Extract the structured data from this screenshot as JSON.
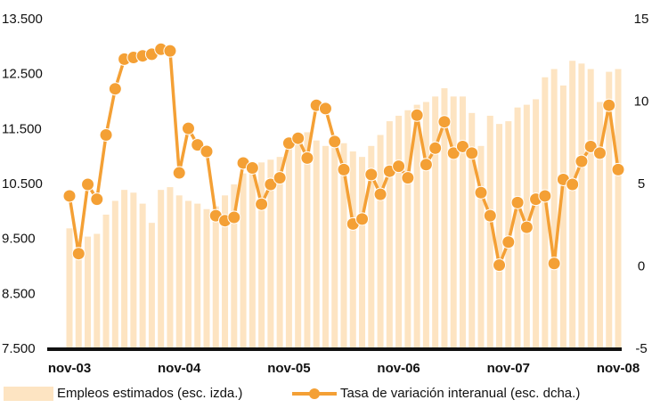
{
  "chart_data": {
    "type": "bar_line",
    "categories": [
      "nov-03",
      null,
      null,
      null,
      null,
      null,
      null,
      null,
      null,
      null,
      null,
      null,
      "nov-04",
      null,
      null,
      null,
      null,
      null,
      null,
      null,
      null,
      null,
      null,
      null,
      "nov-05",
      null,
      null,
      null,
      null,
      null,
      null,
      null,
      null,
      null,
      null,
      null,
      "nov-06",
      null,
      null,
      null,
      null,
      null,
      null,
      null,
      null,
      null,
      null,
      null,
      "nov-07",
      null,
      null,
      null,
      null,
      null,
      null,
      null,
      null,
      null,
      null,
      null,
      "nov-08"
    ],
    "series": [
      {
        "name": "Empleos estimados (esc. izda.)",
        "type": "bar",
        "color": "#fde4c2",
        "values": [
          9700,
          9400,
          9550,
          9600,
          9950,
          10200,
          10400,
          10350,
          10150,
          9800,
          10400,
          10450,
          10300,
          10200,
          10150,
          10050,
          10100,
          10300,
          10500,
          10700,
          10850,
          10900,
          10950,
          11000,
          11200,
          11300,
          11450,
          11300,
          11200,
          11300,
          11250,
          11100,
          11000,
          11200,
          11400,
          11650,
          11750,
          11850,
          11950,
          12000,
          12100,
          12250,
          12100,
          12100,
          11800,
          11200,
          11750,
          11600,
          11650,
          11900,
          11950,
          12050,
          12450,
          12600,
          12300,
          12750,
          12700,
          12600,
          12000,
          12550,
          12600
        ]
      },
      {
        "name": "Tasa de variación interanual (esc. dcha.)",
        "type": "line",
        "axis": "y2",
        "color": "#f4a035",
        "values": [
          4.3,
          0.8,
          5.0,
          4.1,
          8.0,
          10.8,
          12.6,
          12.7,
          12.8,
          12.9,
          13.2,
          13.1,
          5.7,
          8.4,
          7.4,
          7.0,
          3.1,
          2.8,
          3.0,
          6.3,
          6.0,
          3.8,
          5.0,
          5.4,
          7.5,
          7.8,
          6.6,
          9.8,
          9.6,
          7.6,
          5.9,
          2.6,
          2.9,
          5.6,
          4.4,
          5.8,
          6.1,
          5.4,
          9.2,
          6.2,
          7.2,
          8.8,
          6.9,
          7.3,
          6.9,
          4.5,
          3.1,
          0.1,
          1.5,
          3.9,
          2.4,
          4.1,
          4.3,
          0.2,
          5.3,
          5.0,
          6.4,
          7.3,
          6.9,
          9.8,
          5.9
        ]
      }
    ],
    "ylim": [
      7500,
      13500
    ],
    "yticks": [
      {
        "value": 7500,
        "label": "7.500"
      },
      {
        "value": 8500,
        "label": "8.500"
      },
      {
        "value": 9500,
        "label": "9.500"
      },
      {
        "value": 10500,
        "label": "10.500"
      },
      {
        "value": 11500,
        "label": "11.500"
      },
      {
        "value": 12500,
        "label": "12.500"
      },
      {
        "value": 13500,
        "label": "13.500"
      }
    ],
    "y2lim": [
      -5,
      15
    ],
    "y2ticks": [
      -5,
      0,
      5,
      10,
      15
    ],
    "grid": false
  }
}
